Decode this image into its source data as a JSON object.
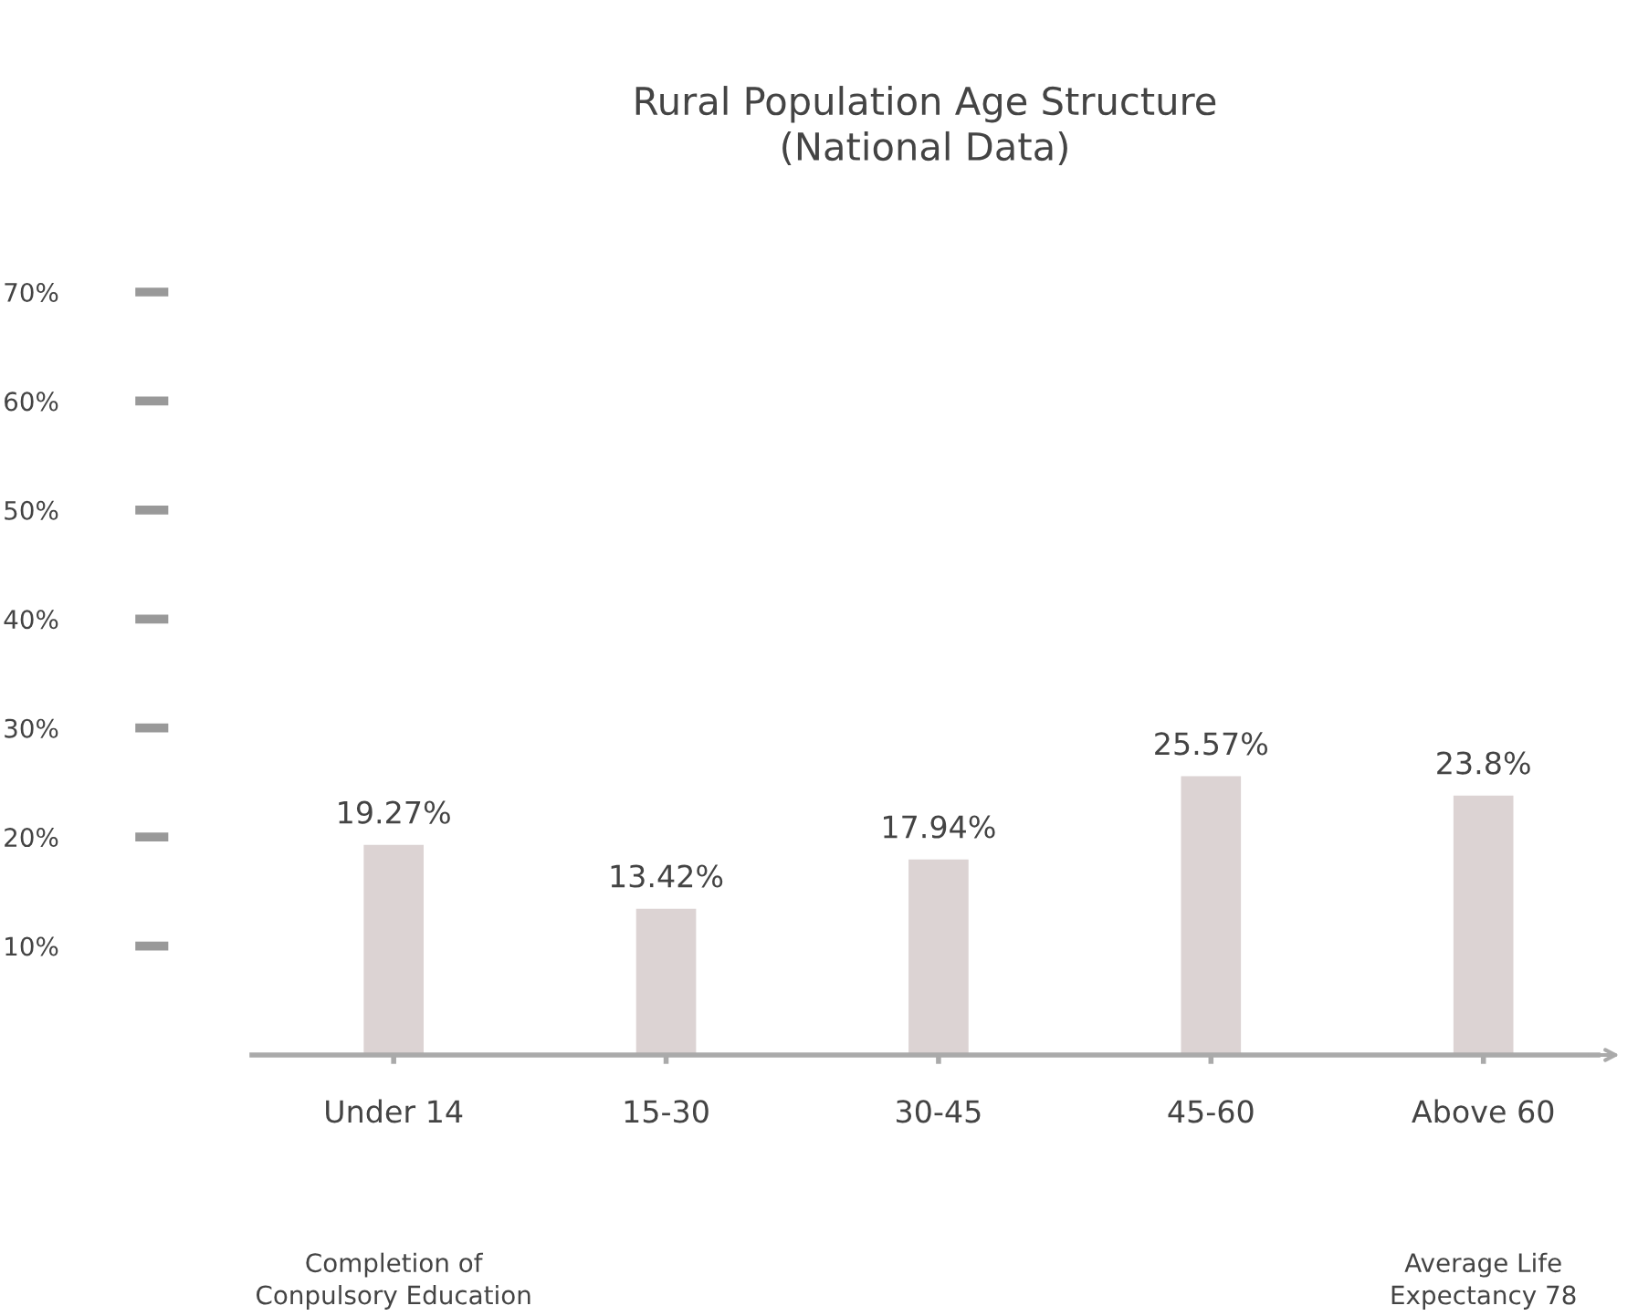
{
  "chart_data": {
    "type": "bar",
    "title": "Rural Population Age Structure\n(National Data)",
    "categories": [
      "Under 14",
      "15-30",
      "30-45",
      "45-60",
      "Above 60"
    ],
    "values": [
      19.27,
      13.42,
      17.94,
      25.57,
      23.8
    ],
    "value_labels": [
      "19.27%",
      "13.42%",
      "17.94%",
      "25.57%",
      "23.8%"
    ],
    "color": "#dcd3d3",
    "ylim": [
      0,
      70
    ],
    "yticks": [
      {
        "value": 10,
        "label": "10%"
      },
      {
        "value": 20,
        "label": "20%"
      },
      {
        "value": 30,
        "label": "30%"
      },
      {
        "value": 40,
        "label": "40%"
      },
      {
        "value": 50,
        "label": "50%"
      },
      {
        "value": 60,
        "label": "60%"
      },
      {
        "value": 70,
        "label": "70%"
      }
    ],
    "grid": false,
    "legend": false,
    "annotations": [
      "Completion of\nConpulsory Education",
      "Average Life\nExpectancy 78"
    ]
  }
}
